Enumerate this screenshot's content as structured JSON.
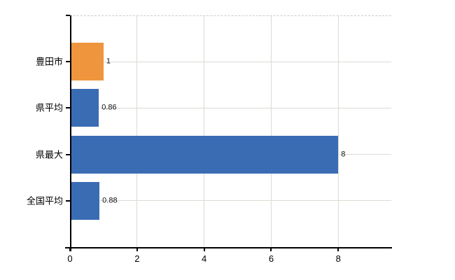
{
  "chart_data": {
    "type": "bar",
    "orientation": "horizontal",
    "title": "",
    "xlabel": "",
    "ylabel": "",
    "categories": [
      "豊田市",
      "県平均",
      "県最大",
      "全国平均"
    ],
    "values": [
      1,
      0.86,
      8,
      0.88
    ],
    "value_labels": [
      "1",
      "0.86",
      "8",
      "0.88"
    ],
    "bar_colors": [
      "#ef953e",
      "#3a6cb4",
      "#3a6cb4",
      "#3a6cb4"
    ],
    "x_ticks": [
      0,
      2,
      4,
      6,
      8
    ],
    "x_tick_labels": [
      "0",
      "2",
      "4",
      "6",
      "8"
    ],
    "xlim": [
      0,
      9.58
    ],
    "grid": true,
    "legend": false
  },
  "colors": {
    "background": "#ffffff",
    "axis": "#000000",
    "gridline": "#d9dcd4",
    "top_border_dashed": "#c9cdc5",
    "bar_highlight": "#ef953e",
    "bar_default": "#3a6cb4",
    "text": "#000000"
  }
}
